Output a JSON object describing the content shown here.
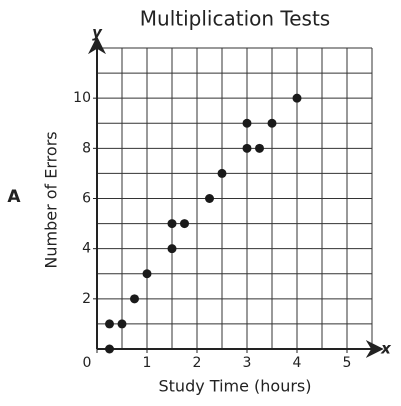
{
  "chart_data": {
    "type": "scatter",
    "title": "Multiplication Tests",
    "x_label": "Study Time (hours)",
    "y_label": "Number of Errors",
    "label": "A",
    "x_axis_symbol": "x",
    "y_axis_symbol": "y",
    "x": [
      0.25,
      0.25,
      0.5,
      0.75,
      1,
      1.5,
      1.5,
      1.75,
      2.25,
      2.5,
      3,
      3.25,
      3,
      3.5,
      4
    ],
    "values": [
      0,
      1,
      1,
      2,
      3,
      4,
      5,
      5,
      6,
      7,
      8,
      8,
      9,
      9,
      10
    ],
    "color": "#1a1a1a",
    "xlim": [
      0,
      5.5
    ],
    "ylim": [
      0,
      12
    ],
    "xticks": [
      0,
      1,
      2,
      3,
      4,
      5
    ],
    "yticks": [
      2,
      4,
      6,
      8,
      10
    ],
    "xgrid": [
      0.5,
      1,
      1.5,
      2,
      2.5,
      3,
      3.5,
      4,
      4.5,
      5,
      5.5
    ],
    "ygrid": [
      1,
      2,
      3,
      4,
      5,
      6,
      7,
      8,
      9,
      10,
      11,
      12
    ],
    "grid": true
  }
}
